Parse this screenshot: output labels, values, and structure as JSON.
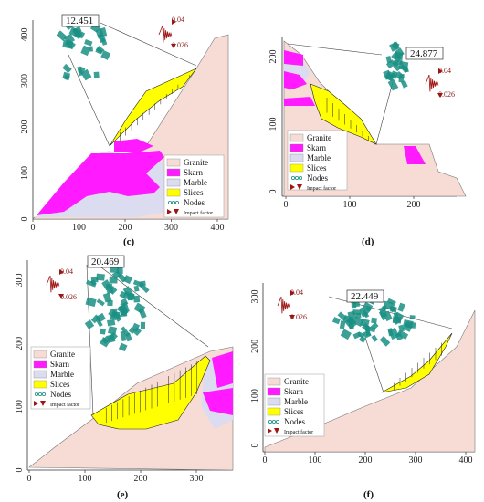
{
  "colors": {
    "granite": "#f7dcd5",
    "skarn": "#ff1aff",
    "marble": "#dcdcf0",
    "slices": "#ffff00",
    "nodes": "#1a8f84",
    "impact": "#a01414",
    "line": "#333333"
  },
  "legend": {
    "granite": "Granite",
    "skarn": "Skarn",
    "marble": "Marble",
    "slices": "Slices",
    "nodes": "Nodes",
    "impact": "Impact factor"
  },
  "impact_values": {
    "high": "0.04",
    "low": "0.026"
  },
  "panels": [
    {
      "id": "c",
      "label": "(c)",
      "fos": "12.451",
      "x_ticks": [
        "0",
        "100",
        "200",
        "300",
        "400"
      ],
      "y_ticks": [
        "0",
        "100",
        "200",
        "300",
        "400"
      ]
    },
    {
      "id": "d",
      "label": "(d)",
      "fos": "24.877",
      "x_ticks": [
        "0",
        "100",
        "200"
      ],
      "y_ticks": [
        "0",
        "100",
        "200"
      ]
    },
    {
      "id": "e",
      "label": "(e)",
      "fos": "20.469",
      "x_ticks": [
        "0",
        "100",
        "200",
        "300"
      ],
      "y_ticks": [
        "0",
        "100",
        "200",
        "300"
      ]
    },
    {
      "id": "f",
      "label": "(f)",
      "fos": "22.449",
      "x_ticks": [
        "0",
        "100",
        "200",
        "300",
        "400"
      ],
      "y_ticks": [
        "0",
        "100",
        "200",
        "300"
      ]
    }
  ]
}
